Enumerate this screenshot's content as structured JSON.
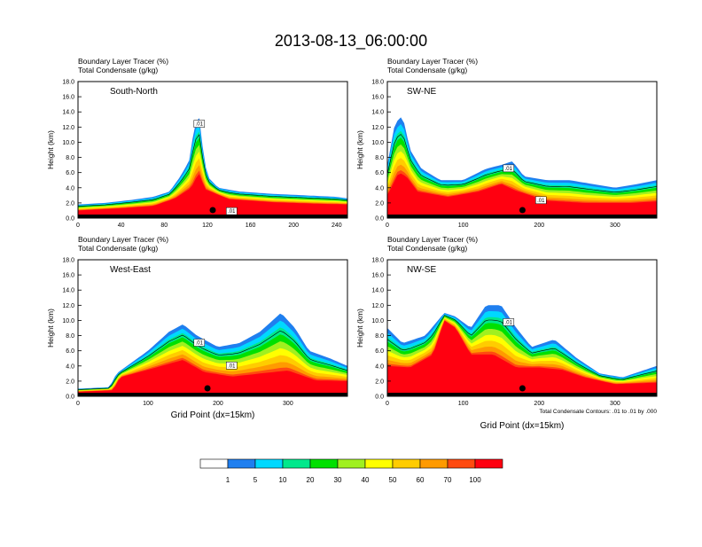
{
  "page_title": "2013-08-13_06:00:00",
  "field_labels": [
    "Boundary Layer Tracer   (%)",
    "Total Condensate   (g/kg)"
  ],
  "colorbar": {
    "colors": [
      "#ffffff",
      "#1f7fef",
      "#00d8ff",
      "#00e88c",
      "#00e000",
      "#a0f020",
      "#ffff00",
      "#ffcc00",
      "#ff9a00",
      "#ff4a10",
      "#ff0010"
    ],
    "labels": [
      "1",
      "5",
      "10",
      "20",
      "30",
      "40",
      "50",
      "60",
      "70",
      "100"
    ]
  },
  "chart_data": [
    {
      "type": "area",
      "panel_label": "South-North",
      "ylabel": "Height (km)",
      "xlabel": "",
      "xlim": [
        0,
        250
      ],
      "xticks": [
        "0",
        "40",
        "80",
        "120",
        "160",
        "200",
        "240"
      ],
      "ylim": [
        0,
        18
      ],
      "yticks": [
        "0.0",
        "2.0",
        "4.0",
        "6.0",
        "8.0",
        "10.0",
        "12.0",
        "14.0",
        "16.0",
        "18.0"
      ],
      "contour_labels": [
        ".01",
        ".01"
      ],
      "plume_top_km": [
        [
          0,
          1.8
        ],
        [
          25,
          2.0
        ],
        [
          50,
          2.4
        ],
        [
          70,
          2.8
        ],
        [
          85,
          3.5
        ],
        [
          95,
          5.5
        ],
        [
          103,
          7.5
        ],
        [
          108,
          12.0
        ],
        [
          112,
          13.8
        ],
        [
          116,
          9.0
        ],
        [
          120,
          5.5
        ],
        [
          130,
          4.0
        ],
        [
          150,
          3.5
        ],
        [
          180,
          3.2
        ],
        [
          210,
          3.0
        ],
        [
          240,
          2.8
        ],
        [
          250,
          2.6
        ]
      ],
      "core_top_km": [
        [
          0,
          1.0
        ],
        [
          40,
          1.3
        ],
        [
          70,
          1.6
        ],
        [
          90,
          2.6
        ],
        [
          105,
          4.0
        ],
        [
          112,
          6.0
        ],
        [
          118,
          3.8
        ],
        [
          140,
          2.5
        ],
        [
          180,
          2.1
        ],
        [
          220,
          1.9
        ],
        [
          250,
          1.8
        ]
      ],
      "marker_x": 125
    },
    {
      "type": "area",
      "panel_label": "SW-NE",
      "ylabel": "Height (km)",
      "xlabel": "",
      "xlim": [
        0,
        355
      ],
      "xticks": [
        "0",
        "100",
        "200",
        "300"
      ],
      "ylim": [
        0,
        18
      ],
      "yticks": [
        "0.0",
        "2.0",
        "4.0",
        "6.0",
        "8.0",
        "10.0",
        "12.0",
        "14.0",
        "16.0",
        "18.0"
      ],
      "contour_labels": [
        ".01",
        ".01"
      ],
      "plume_top_km": [
        [
          0,
          7.0
        ],
        [
          10,
          12.5
        ],
        [
          20,
          13.5
        ],
        [
          30,
          9.0
        ],
        [
          45,
          6.5
        ],
        [
          70,
          5.0
        ],
        [
          100,
          5.0
        ],
        [
          130,
          6.5
        ],
        [
          150,
          7.0
        ],
        [
          165,
          7.5
        ],
        [
          180,
          5.5
        ],
        [
          210,
          5.0
        ],
        [
          240,
          5.0
        ],
        [
          270,
          4.5
        ],
        [
          300,
          4.0
        ],
        [
          330,
          4.5
        ],
        [
          355,
          5.0
        ]
      ],
      "core_top_km": [
        [
          0,
          3.0
        ],
        [
          15,
          6.0
        ],
        [
          25,
          5.5
        ],
        [
          40,
          3.5
        ],
        [
          80,
          2.8
        ],
        [
          120,
          3.5
        ],
        [
          150,
          4.5
        ],
        [
          170,
          3.6
        ],
        [
          210,
          2.3
        ],
        [
          260,
          2.0
        ],
        [
          320,
          2.0
        ],
        [
          355,
          2.2
        ]
      ],
      "marker_x": 178
    },
    {
      "type": "area",
      "panel_label": "West-East",
      "ylabel": "Height (km)",
      "xlabel": "Grid Point (dx=15km)",
      "xlim": [
        0,
        385
      ],
      "xticks": [
        "0",
        "100",
        "200",
        "300"
      ],
      "ylim": [
        0,
        18
      ],
      "yticks": [
        "0.0",
        "2.0",
        "4.0",
        "6.0",
        "8.0",
        "10.0",
        "12.0",
        "14.0",
        "16.0",
        "18.0"
      ],
      "contour_labels": [
        ".01",
        ".01"
      ],
      "plume_top_km": [
        [
          0,
          1.0
        ],
        [
          45,
          1.2
        ],
        [
          55,
          3.0
        ],
        [
          70,
          4.0
        ],
        [
          100,
          6.0
        ],
        [
          130,
          8.5
        ],
        [
          150,
          9.5
        ],
        [
          170,
          8.0
        ],
        [
          200,
          6.5
        ],
        [
          230,
          7.0
        ],
        [
          260,
          8.5
        ],
        [
          290,
          11.0
        ],
        [
          310,
          9.0
        ],
        [
          330,
          6.0
        ],
        [
          360,
          5.0
        ],
        [
          385,
          4.0
        ]
      ],
      "core_top_km": [
        [
          0,
          0.6
        ],
        [
          50,
          0.8
        ],
        [
          60,
          2.5
        ],
        [
          100,
          3.5
        ],
        [
          150,
          4.8
        ],
        [
          180,
          3.2
        ],
        [
          220,
          2.6
        ],
        [
          260,
          3.0
        ],
        [
          300,
          3.4
        ],
        [
          340,
          2.1
        ],
        [
          385,
          2.0
        ]
      ],
      "marker_x": 185
    },
    {
      "type": "area",
      "panel_label": "NW-SE",
      "ylabel": "Height (km)",
      "xlabel": "Grid Point (dx=15km)",
      "note": "Total Condensate Contours: .01 to .01 by .000",
      "xlim": [
        0,
        355
      ],
      "xticks": [
        "0",
        "100",
        "200",
        "300"
      ],
      "ylim": [
        0,
        18
      ],
      "yticks": [
        "0.0",
        "2.0",
        "4.0",
        "6.0",
        "8.0",
        "10.0",
        "12.0",
        "14.0",
        "16.0",
        "18.0"
      ],
      "contour_labels": [
        ".01"
      ],
      "plume_top_km": [
        [
          0,
          9.0
        ],
        [
          20,
          7.0
        ],
        [
          50,
          8.0
        ],
        [
          75,
          11.0
        ],
        [
          90,
          10.5
        ],
        [
          110,
          9.0
        ],
        [
          130,
          12.0
        ],
        [
          150,
          12.0
        ],
        [
          170,
          9.0
        ],
        [
          190,
          6.5
        ],
        [
          220,
          7.5
        ],
        [
          250,
          5.0
        ],
        [
          280,
          3.0
        ],
        [
          310,
          2.5
        ],
        [
          340,
          3.5
        ],
        [
          355,
          4.0
        ]
      ],
      "core_top_km": [
        [
          0,
          4.0
        ],
        [
          30,
          3.8
        ],
        [
          60,
          5.5
        ],
        [
          75,
          10.0
        ],
        [
          90,
          9.0
        ],
        [
          110,
          5.5
        ],
        [
          140,
          5.5
        ],
        [
          170,
          3.8
        ],
        [
          200,
          3.8
        ],
        [
          230,
          3.5
        ],
        [
          260,
          2.5
        ],
        [
          300,
          1.6
        ],
        [
          355,
          1.8
        ]
      ],
      "marker_x": 178
    }
  ]
}
